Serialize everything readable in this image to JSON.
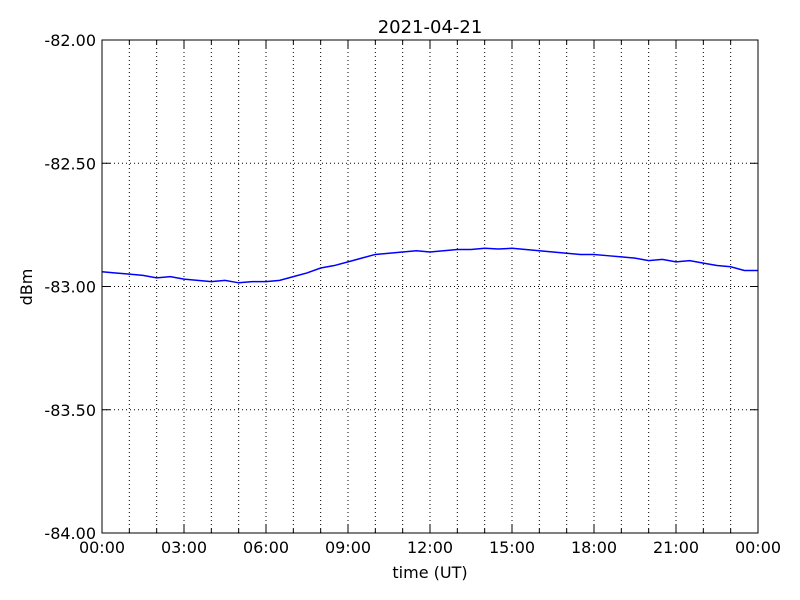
{
  "chart_data": {
    "type": "line",
    "title": "2021-04-21",
    "x_label": "time (UT)",
    "y_label": "dBm",
    "x": [
      0,
      0.5,
      1,
      1.5,
      2,
      2.5,
      3,
      3.5,
      4,
      4.5,
      5,
      5.5,
      6,
      6.5,
      7,
      7.5,
      8,
      8.5,
      9,
      9.5,
      10,
      10.5,
      11,
      11.5,
      12,
      12.5,
      13,
      13.5,
      14,
      14.5,
      15,
      15.5,
      16,
      16.5,
      17,
      17.5,
      18,
      18.5,
      19,
      19.5,
      20,
      20.5,
      21,
      21.5,
      22,
      22.5,
      23,
      23.5,
      24
    ],
    "series": [
      {
        "color": "#0000ff",
        "values": [
          -82.94,
          -82.945,
          -82.95,
          -82.955,
          -82.965,
          -82.96,
          -82.97,
          -82.975,
          -82.98,
          -82.975,
          -82.985,
          -82.98,
          -82.98,
          -82.975,
          -82.96,
          -82.945,
          -82.925,
          -82.915,
          -82.9,
          -82.885,
          -82.87,
          -82.865,
          -82.86,
          -82.855,
          -82.86,
          -82.855,
          -82.85,
          -82.85,
          -82.845,
          -82.848,
          -82.845,
          -82.85,
          -82.855,
          -82.86,
          -82.865,
          -82.87,
          -82.87,
          -82.875,
          -82.88,
          -82.885,
          -82.895,
          -82.89,
          -82.9,
          -82.895,
          -82.905,
          -82.915,
          -82.92,
          -82.935,
          -82.935
        ]
      }
    ],
    "xlim": [
      0,
      24
    ],
    "xticks": [
      {
        "value": 0,
        "label": "00:00"
      },
      {
        "value": 3,
        "label": "03:00"
      },
      {
        "value": 6,
        "label": "06:00"
      },
      {
        "value": 9,
        "label": "09:00"
      },
      {
        "value": 12,
        "label": "12:00"
      },
      {
        "value": 15,
        "label": "15:00"
      },
      {
        "value": 18,
        "label": "18:00"
      },
      {
        "value": 21,
        "label": "21:00"
      },
      {
        "value": 24,
        "label": "00:00"
      }
    ],
    "x_minor_ticks": [
      1,
      2,
      4,
      5,
      7,
      8,
      10,
      11,
      13,
      14,
      16,
      17,
      19,
      20,
      22,
      23
    ],
    "ylim": [
      -84,
      -82
    ],
    "yticks": [
      {
        "value": -84,
        "label": "-84.00"
      },
      {
        "value": -83.5,
        "label": "-83.50"
      },
      {
        "value": -83,
        "label": "-83.00"
      },
      {
        "value": -82.5,
        "label": "-82.50"
      },
      {
        "value": -82,
        "label": "-82.00"
      }
    ],
    "grid": true
  }
}
